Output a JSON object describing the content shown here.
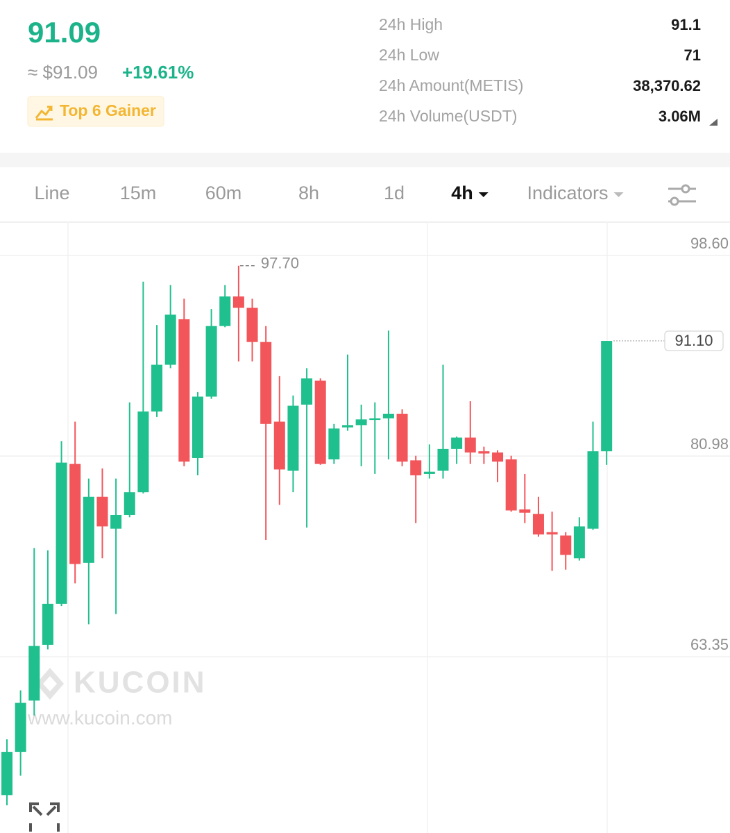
{
  "header": {
    "price": "91.09",
    "fiat_price": "≈ $91.09",
    "change": "+19.61%",
    "badge": "Top 6 Gainer"
  },
  "stats": [
    {
      "label": "24h High",
      "value": "91.1"
    },
    {
      "label": "24h Low",
      "value": "71"
    },
    {
      "label": "24h Amount(METIS)",
      "value": "38,370.62"
    },
    {
      "label": "24h Volume(USDT)",
      "value": "3.06M"
    }
  ],
  "tabs": [
    "Line",
    "15m",
    "60m",
    "8h",
    "1d",
    "4h",
    "Indicators"
  ],
  "active_tab": 5,
  "watermark": {
    "brand": "KUCOIN",
    "url": "www.kucoin.com"
  },
  "chart_data": {
    "type": "candlestick",
    "open": [
      51.2,
      55.0,
      59.5,
      64.4,
      68.0,
      80.3,
      71.6,
      77.4,
      74.6,
      75.8,
      77.8,
      84.9,
      89.0,
      93.0,
      80.8,
      86.2,
      92.4,
      95.0,
      94.0,
      91.0,
      84.0,
      79.7,
      85.5,
      87.6,
      80.7,
      83.5,
      83.7,
      84.2,
      84.3,
      84.7,
      80.6,
      79.4,
      79.7,
      81.6,
      82.6,
      81.4,
      81.3,
      80.7,
      76.3,
      75.9,
      74.3,
      74.0,
      72.0,
      74.6,
      81.4
    ],
    "high": [
      56.1,
      60.4,
      72.9,
      72.7,
      82.3,
      84.0,
      79.0,
      79.9,
      79.0,
      85.7,
      96.3,
      92.5,
      96.0,
      94.8,
      86.6,
      93.9,
      96.0,
      97.7,
      94.8,
      92.4,
      88.0,
      86.3,
      88.7,
      87.8,
      83.8,
      89.9,
      85.5,
      85.7,
      92.0,
      85.1,
      81.0,
      82.0,
      89.0,
      82.7,
      85.8,
      81.8,
      81.5,
      81.0,
      79.4,
      77.4,
      76.1,
      74.3,
      75.6,
      84.0,
      91.1
    ],
    "low": [
      50.3,
      52.9,
      58.2,
      64.0,
      67.8,
      69.8,
      66.2,
      72.0,
      67.1,
      75.6,
      77.7,
      84.4,
      88.7,
      80.1,
      79.3,
      86.0,
      92.3,
      89.3,
      89.3,
      73.6,
      76.7,
      77.8,
      74.7,
      80.2,
      80.3,
      83.2,
      80.1,
      79.4,
      80.7,
      80.1,
      75.1,
      79.0,
      79.0,
      80.3,
      80.3,
      80.3,
      78.7,
      76.1,
      75.1,
      73.9,
      70.9,
      71.0,
      71.8,
      74.5,
      80.2
    ],
    "close": [
      55.0,
      59.3,
      64.3,
      68.0,
      80.4,
      71.5,
      77.4,
      74.8,
      75.8,
      77.8,
      84.9,
      89.0,
      93.4,
      80.5,
      86.2,
      92.4,
      95.0,
      94.0,
      91.0,
      83.8,
      79.8,
      85.4,
      87.8,
      80.3,
      83.4,
      83.7,
      84.2,
      84.3,
      84.7,
      80.5,
      79.3,
      79.6,
      81.6,
      82.6,
      81.3,
      81.2,
      80.5,
      76.2,
      76.0,
      74.1,
      74.1,
      72.3,
      74.8,
      81.4,
      91.1
    ],
    "up_color": "#20bf8e",
    "down_color": "#f2555a",
    "ylim": [
      47.87,
      101.53
    ],
    "yticks": [
      {
        "value": 98.6,
        "label": "98.60"
      },
      80.98,
      63.35
    ],
    "grid": true,
    "last_price": {
      "value": 91.1,
      "label": "91.10"
    },
    "high_marker": {
      "value": 97.7,
      "label": "97.70"
    }
  }
}
